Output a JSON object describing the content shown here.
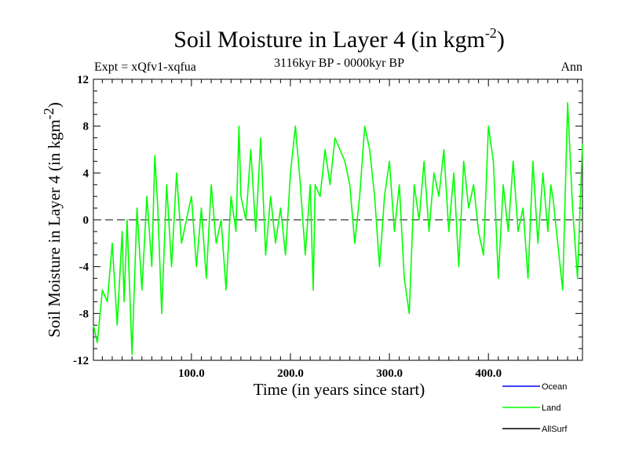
{
  "chart_data": {
    "type": "line",
    "title": {
      "main": "Soil Moisture in Layer 4 (in kgm",
      "sup": "-2",
      "close": ")"
    },
    "subtitle": "3116kyr BP - 0000kyr BP",
    "expt_label": "Expt = xQfv1-xqfua",
    "season_label": "Ann",
    "xlabel": "Time (in years since start)",
    "ylabel": {
      "main": "Soil Moisture in Layer 4 (in kgm",
      "sup": "-2",
      "close": ")"
    },
    "xlim": [
      1,
      495
    ],
    "ylim": [
      -12,
      12
    ],
    "x_ticks": [
      100,
      200,
      300,
      400
    ],
    "x_tick_labels": [
      "100.0",
      "200.0",
      "300.0",
      "400.0"
    ],
    "y_ticks": [
      -12,
      -8,
      -4,
      0,
      4,
      8,
      12
    ],
    "y_tick_labels": [
      "-12",
      "-8",
      "-4",
      "0",
      "4",
      "8",
      "12"
    ],
    "reference_line": 0,
    "series": [
      {
        "name": "Ocean",
        "color": "#0000ff",
        "values": []
      },
      {
        "name": "Land",
        "color": "#00ff00",
        "x": [
          1,
          5,
          10,
          15,
          20,
          25,
          30,
          32,
          35,
          40,
          45,
          50,
          55,
          60,
          63,
          66,
          70,
          75,
          80,
          85,
          90,
          95,
          100,
          105,
          110,
          115,
          120,
          125,
          130,
          135,
          140,
          145,
          148,
          150,
          155,
          160,
          165,
          170,
          175,
          180,
          185,
          190,
          195,
          200,
          205,
          210,
          215,
          220,
          223,
          225,
          230,
          235,
          240,
          245,
          250,
          255,
          260,
          265,
          270,
          275,
          280,
          285,
          290,
          295,
          300,
          305,
          310,
          315,
          320,
          325,
          330,
          335,
          340,
          345,
          350,
          355,
          360,
          365,
          370,
          375,
          380,
          385,
          390,
          395,
          400,
          405,
          410,
          415,
          420,
          425,
          430,
          435,
          440,
          445,
          450,
          455,
          460,
          463,
          465,
          470,
          475,
          480,
          485,
          490,
          495
        ],
        "values": [
          -9,
          -10.5,
          -6,
          -7,
          -2,
          -9,
          -1,
          -7,
          0,
          -11.5,
          1,
          -6,
          2,
          -4,
          5.5,
          1,
          -8,
          3,
          -4,
          4,
          -2,
          0,
          2,
          -4,
          1,
          -5,
          3,
          -2,
          0,
          -6,
          2,
          -1,
          8,
          2,
          0,
          6,
          -1,
          7,
          -3,
          2,
          -2,
          1,
          -3,
          4,
          8,
          3,
          -3,
          3,
          -6,
          3,
          2,
          6,
          3,
          7,
          6,
          5,
          3,
          -2,
          2,
          8,
          6,
          2,
          -4,
          2,
          5,
          -1,
          3,
          -5,
          -8,
          3,
          0,
          5,
          -1,
          4,
          2,
          6,
          -1,
          4,
          -4,
          5,
          1,
          3,
          -1,
          -3,
          8,
          5,
          -5,
          3,
          -1,
          5,
          -1,
          1,
          -5,
          5,
          -2,
          4,
          -1,
          3,
          2,
          -2,
          -6,
          10,
          1,
          -5,
          6.5
        ]
      },
      {
        "name": "AllSurf",
        "color": "#000000",
        "values": []
      }
    ]
  }
}
